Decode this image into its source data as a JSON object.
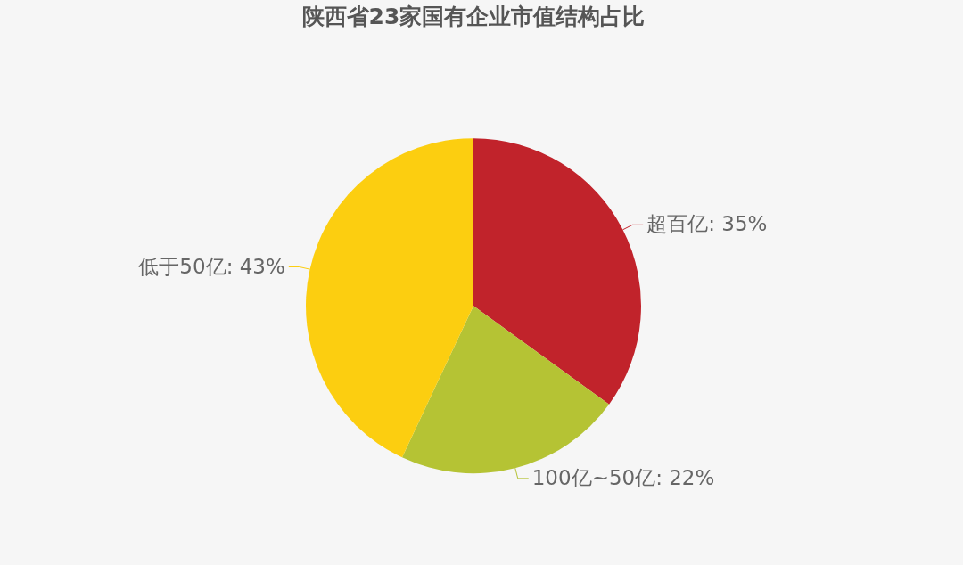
{
  "chart_data": {
    "type": "pie",
    "title": "陕西省23家国有企业市值结构占比",
    "categories": [
      "超百亿",
      "100亿~50亿",
      "低于50亿"
    ],
    "values": [
      35,
      22,
      43
    ],
    "colors": [
      "#c1232b",
      "#b5c334",
      "#fcce10"
    ],
    "value_labels": [
      "35%",
      "22%",
      "43%"
    ]
  }
}
